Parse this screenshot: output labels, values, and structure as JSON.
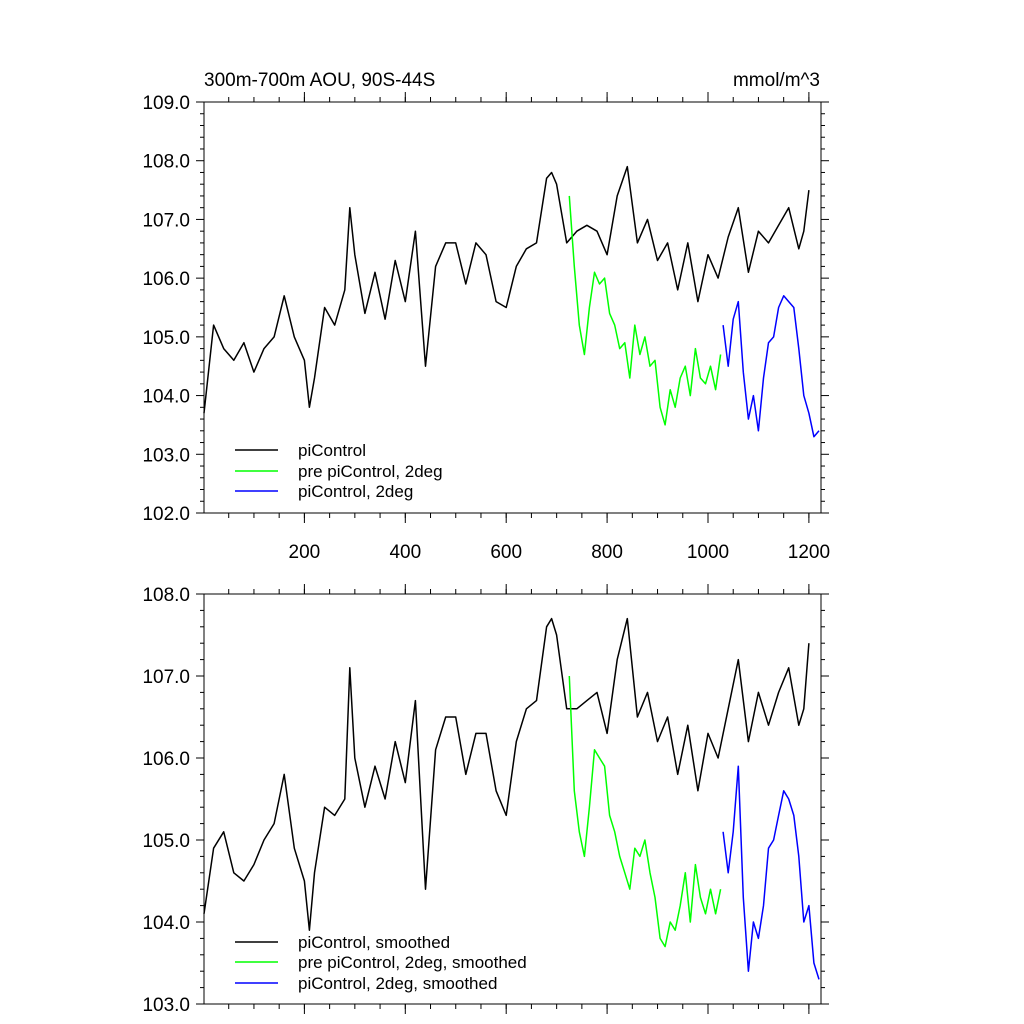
{
  "chart_data": [
    {
      "type": "line",
      "title": "300m-700m AOU, 90S-44S",
      "units": "mmol/m^3",
      "xlim": [
        1,
        1224
      ],
      "ylim": [
        102.0,
        109.0
      ],
      "x_ticks": [
        200,
        400,
        600,
        800,
        1000,
        1200
      ],
      "x_tick_labels": [
        "200",
        "400",
        "600",
        "800",
        "1000",
        "1200"
      ],
      "y_ticks": [
        102.0,
        103.0,
        104.0,
        105.0,
        106.0,
        107.0,
        108.0,
        109.0
      ],
      "y_tick_labels": [
        "102.0",
        "103.0",
        "104.0",
        "105.0",
        "106.0",
        "107.0",
        "108.0",
        "109.0"
      ],
      "legend_position": "bottom-left",
      "series": [
        {
          "name": "piControl",
          "color": "#000000",
          "x": [
            1,
            20,
            40,
            60,
            80,
            100,
            120,
            140,
            160,
            180,
            200,
            210,
            220,
            240,
            260,
            280,
            290,
            300,
            320,
            340,
            360,
            380,
            400,
            420,
            440,
            460,
            480,
            500,
            520,
            540,
            560,
            580,
            600,
            620,
            640,
            660,
            680,
            690,
            700,
            720,
            740,
            760,
            780,
            800,
            820,
            840,
            860,
            880,
            900,
            920,
            940,
            960,
            980,
            1000,
            1020,
            1040,
            1060,
            1080,
            1100,
            1120,
            1140,
            1160,
            1180,
            1190,
            1200
          ],
          "values": [
            103.7,
            105.2,
            104.8,
            104.6,
            104.9,
            104.4,
            104.8,
            105.0,
            105.7,
            105.0,
            104.6,
            103.8,
            104.3,
            105.5,
            105.2,
            105.8,
            107.2,
            106.4,
            105.4,
            106.1,
            105.3,
            106.3,
            105.6,
            106.8,
            104.5,
            106.2,
            106.6,
            106.6,
            105.9,
            106.6,
            106.4,
            105.6,
            105.5,
            106.2,
            106.5,
            106.6,
            107.7,
            107.8,
            107.6,
            106.6,
            106.8,
            106.9,
            106.8,
            106.4,
            107.4,
            107.9,
            106.6,
            107.0,
            106.3,
            106.6,
            105.8,
            106.6,
            105.6,
            106.4,
            106.0,
            106.7,
            107.2,
            106.1,
            106.8,
            106.6,
            106.9,
            107.2,
            106.5,
            106.8,
            107.5
          ]
        },
        {
          "name": "pre piControl, 2deg",
          "color": "#00ff00",
          "x": [
            725,
            735,
            745,
            755,
            765,
            775,
            785,
            795,
            805,
            815,
            825,
            835,
            845,
            855,
            865,
            875,
            885,
            895,
            905,
            915,
            925,
            935,
            945,
            955,
            965,
            975,
            985,
            995,
            1005,
            1015,
            1025
          ],
          "values": [
            107.4,
            106.2,
            105.2,
            104.7,
            105.5,
            106.1,
            105.9,
            106.0,
            105.4,
            105.2,
            104.8,
            104.9,
            104.3,
            105.2,
            104.7,
            105.0,
            104.5,
            104.6,
            103.8,
            103.5,
            104.1,
            103.8,
            104.3,
            104.5,
            104.0,
            104.8,
            104.3,
            104.2,
            104.5,
            104.1,
            104.7
          ]
        },
        {
          "name": "piControl, 2deg",
          "color": "#0000ff",
          "x": [
            1030,
            1040,
            1050,
            1060,
            1070,
            1080,
            1090,
            1100,
            1110,
            1120,
            1130,
            1140,
            1150,
            1160,
            1170,
            1180,
            1190,
            1200,
            1210,
            1220
          ],
          "values": [
            105.2,
            104.5,
            105.3,
            105.6,
            104.4,
            103.6,
            104.0,
            103.4,
            104.3,
            104.9,
            105.0,
            105.5,
            105.7,
            105.6,
            105.5,
            104.8,
            104.0,
            103.7,
            103.3,
            103.4
          ]
        }
      ]
    },
    {
      "type": "line",
      "xlim": [
        1,
        1224
      ],
      "ylim": [
        103.0,
        108.0
      ],
      "x_ticks": [
        200,
        400,
        600,
        800,
        1000,
        1200
      ],
      "y_ticks": [
        103.0,
        104.0,
        105.0,
        106.0,
        107.0,
        108.0
      ],
      "y_tick_labels": [
        "103.0",
        "104.0",
        "105.0",
        "106.0",
        "107.0",
        "108.0"
      ],
      "legend_position": "bottom-left",
      "series": [
        {
          "name": "piControl, smoothed",
          "color": "#000000",
          "x": [
            1,
            20,
            40,
            60,
            80,
            100,
            120,
            140,
            160,
            180,
            200,
            210,
            220,
            240,
            260,
            280,
            290,
            300,
            320,
            340,
            360,
            380,
            400,
            420,
            440,
            460,
            480,
            500,
            520,
            540,
            560,
            580,
            600,
            620,
            640,
            660,
            680,
            690,
            700,
            720,
            740,
            760,
            780,
            800,
            820,
            840,
            860,
            880,
            900,
            920,
            940,
            960,
            980,
            1000,
            1020,
            1040,
            1060,
            1080,
            1100,
            1120,
            1140,
            1160,
            1180,
            1190,
            1200
          ],
          "values": [
            104.1,
            104.9,
            105.1,
            104.6,
            104.5,
            104.7,
            105.0,
            105.2,
            105.8,
            104.9,
            104.5,
            103.9,
            104.6,
            105.4,
            105.3,
            105.5,
            107.1,
            106.0,
            105.4,
            105.9,
            105.5,
            106.2,
            105.7,
            106.7,
            104.4,
            106.1,
            106.5,
            106.5,
            105.8,
            106.3,
            106.3,
            105.6,
            105.3,
            106.2,
            106.6,
            106.7,
            107.6,
            107.7,
            107.5,
            106.6,
            106.6,
            106.7,
            106.8,
            106.3,
            107.2,
            107.7,
            106.5,
            106.8,
            106.2,
            106.5,
            105.8,
            106.4,
            105.6,
            106.3,
            106.0,
            106.6,
            107.2,
            106.2,
            106.8,
            106.4,
            106.8,
            107.1,
            106.4,
            106.6,
            107.4
          ]
        },
        {
          "name": "pre piControl, 2deg, smoothed",
          "color": "#00ff00",
          "x": [
            725,
            735,
            745,
            755,
            765,
            775,
            785,
            795,
            805,
            815,
            825,
            835,
            845,
            855,
            865,
            875,
            885,
            895,
            905,
            915,
            925,
            935,
            945,
            955,
            965,
            975,
            985,
            995,
            1005,
            1015,
            1025
          ],
          "values": [
            107.0,
            105.6,
            105.1,
            104.8,
            105.4,
            106.1,
            106.0,
            105.9,
            105.3,
            105.1,
            104.8,
            104.6,
            104.4,
            104.9,
            104.8,
            105.0,
            104.6,
            104.3,
            103.8,
            103.7,
            104.0,
            103.9,
            104.2,
            104.6,
            104.0,
            104.7,
            104.3,
            104.1,
            104.4,
            104.1,
            104.4
          ]
        },
        {
          "name": "piControl, 2deg, smoothed",
          "color": "#0000ff",
          "x": [
            1030,
            1040,
            1050,
            1060,
            1070,
            1080,
            1090,
            1100,
            1110,
            1120,
            1130,
            1140,
            1150,
            1160,
            1170,
            1180,
            1190,
            1200,
            1210,
            1220
          ],
          "values": [
            105.1,
            104.6,
            105.1,
            105.9,
            104.3,
            103.4,
            104.0,
            103.8,
            104.2,
            104.9,
            105.0,
            105.3,
            105.6,
            105.5,
            105.3,
            104.8,
            104.0,
            104.2,
            103.5,
            103.3
          ]
        }
      ]
    }
  ]
}
